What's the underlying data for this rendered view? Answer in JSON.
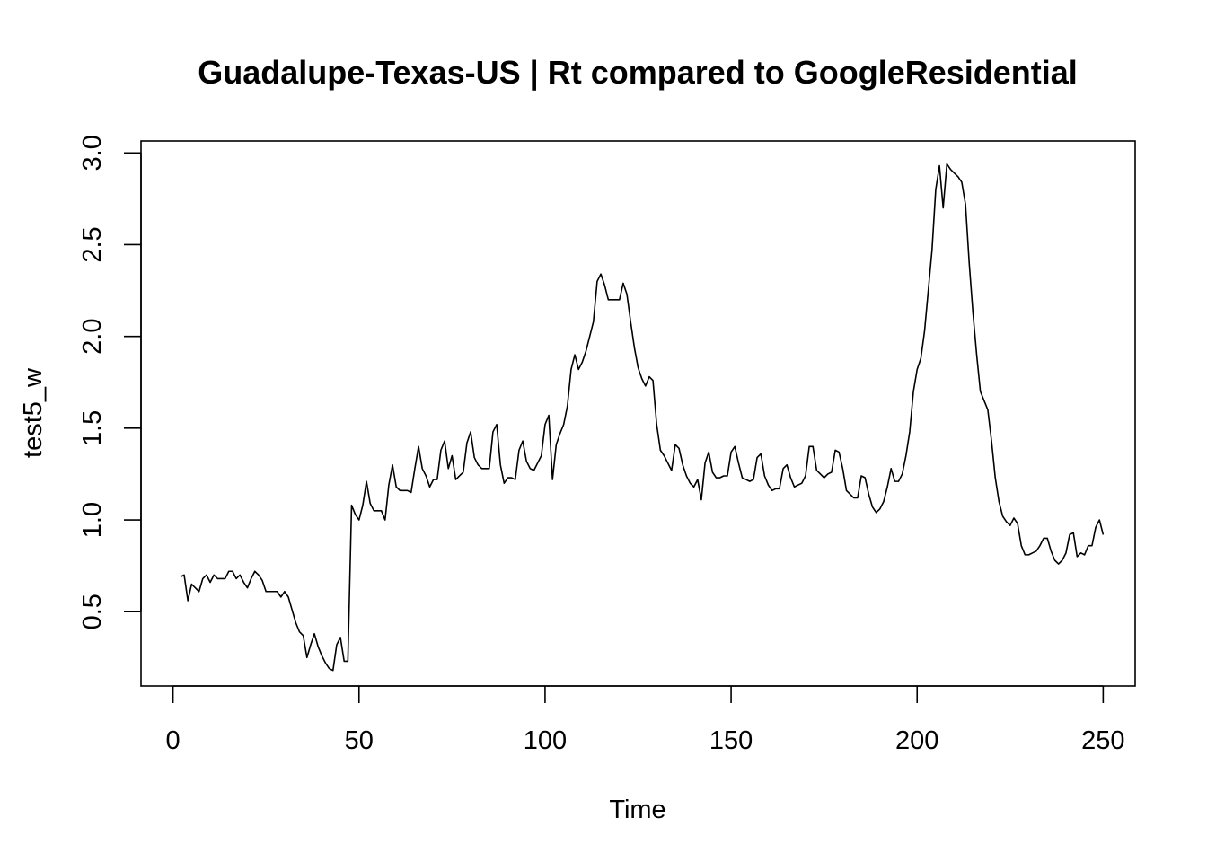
{
  "chart_data": {
    "type": "line",
    "title": "Guadalupe-Texas-US | Rt compared to GoogleResidential",
    "xlabel": "Time",
    "ylabel": "test5_w",
    "xlim": [
      -8.6,
      258.6
    ],
    "ylim": [
      0.095,
      3.065
    ],
    "x_ticks": [
      0,
      50,
      100,
      150,
      200,
      250
    ],
    "y_ticks": [
      0.5,
      1.0,
      1.5,
      2.0,
      2.5,
      3.0
    ],
    "x_tick_labels": [
      "0",
      "50",
      "100",
      "150",
      "200",
      "250"
    ],
    "y_tick_labels": [
      "0.5",
      "1.0",
      "1.5",
      "2.0",
      "2.5",
      "3.0"
    ],
    "grid": false,
    "x_start": 2,
    "series": [
      {
        "values": [
          0.69,
          0.7,
          0.56,
          0.65,
          0.63,
          0.61,
          0.68,
          0.7,
          0.66,
          0.7,
          0.68,
          0.68,
          0.68,
          0.72,
          0.72,
          0.68,
          0.7,
          0.66,
          0.63,
          0.68,
          0.72,
          0.7,
          0.67,
          0.61,
          0.61,
          0.61,
          0.61,
          0.58,
          0.61,
          0.58,
          0.51,
          0.44,
          0.39,
          0.37,
          0.25,
          0.32,
          0.38,
          0.31,
          0.26,
          0.22,
          0.19,
          0.18,
          0.32,
          0.36,
          0.23,
          0.23,
          1.08,
          1.03,
          1.0,
          1.08,
          1.21,
          1.09,
          1.05,
          1.05,
          1.05,
          1.0,
          1.19,
          1.3,
          1.18,
          1.16,
          1.16,
          1.16,
          1.15,
          1.28,
          1.4,
          1.28,
          1.24,
          1.18,
          1.22,
          1.22,
          1.38,
          1.43,
          1.28,
          1.35,
          1.22,
          1.24,
          1.26,
          1.42,
          1.48,
          1.34,
          1.3,
          1.28,
          1.28,
          1.28,
          1.48,
          1.52,
          1.3,
          1.2,
          1.23,
          1.23,
          1.22,
          1.38,
          1.43,
          1.32,
          1.28,
          1.27,
          1.31,
          1.35,
          1.52,
          1.57,
          1.22,
          1.41,
          1.47,
          1.52,
          1.62,
          1.82,
          1.9,
          1.82,
          1.86,
          1.92,
          2.0,
          2.08,
          2.3,
          2.34,
          2.28,
          2.2,
          2.2,
          2.2,
          2.2,
          2.29,
          2.23,
          2.08,
          1.94,
          1.83,
          1.77,
          1.73,
          1.78,
          1.76,
          1.52,
          1.38,
          1.35,
          1.31,
          1.27,
          1.41,
          1.39,
          1.3,
          1.24,
          1.2,
          1.18,
          1.22,
          1.11,
          1.31,
          1.37,
          1.26,
          1.23,
          1.23,
          1.24,
          1.24,
          1.37,
          1.4,
          1.31,
          1.23,
          1.22,
          1.21,
          1.22,
          1.34,
          1.36,
          1.24,
          1.19,
          1.16,
          1.17,
          1.17,
          1.28,
          1.3,
          1.23,
          1.18,
          1.19,
          1.2,
          1.24,
          1.4,
          1.4,
          1.27,
          1.25,
          1.23,
          1.25,
          1.26,
          1.38,
          1.37,
          1.28,
          1.16,
          1.14,
          1.12,
          1.12,
          1.24,
          1.23,
          1.14,
          1.07,
          1.04,
          1.06,
          1.1,
          1.18,
          1.28,
          1.21,
          1.21,
          1.25,
          1.35,
          1.48,
          1.7,
          1.82,
          1.88,
          2.03,
          2.25,
          2.47,
          2.8,
          2.93,
          2.7,
          2.94,
          2.91,
          2.89,
          2.87,
          2.84,
          2.72,
          2.4,
          2.13,
          1.9,
          1.7,
          1.65,
          1.6,
          1.43,
          1.23,
          1.1,
          1.02,
          0.99,
          0.97,
          1.01,
          0.98,
          0.86,
          0.81,
          0.81,
          0.82,
          0.83,
          0.86,
          0.9,
          0.9,
          0.83,
          0.78,
          0.76,
          0.78,
          0.82,
          0.92,
          0.93,
          0.8,
          0.82,
          0.81,
          0.86,
          0.86,
          0.96,
          1.0,
          0.92
        ]
      }
    ]
  }
}
